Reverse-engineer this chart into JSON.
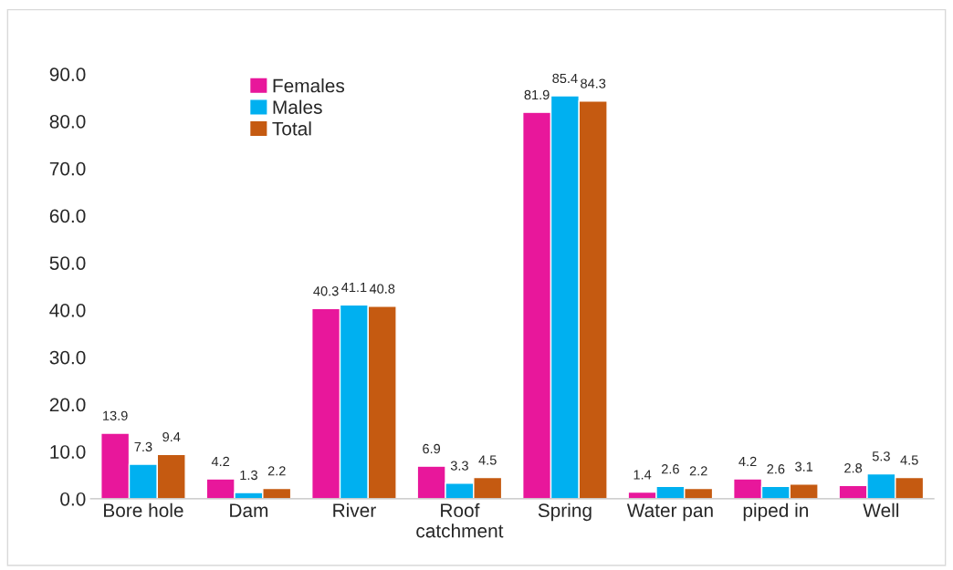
{
  "chart_data": {
    "type": "bar",
    "categories": [
      "Bore hole",
      "Dam",
      "River",
      "Roof\ncatchment",
      "Spring",
      "Water pan",
      "piped in",
      "Well"
    ],
    "series": [
      {
        "name": "Females",
        "color": "#e8179b",
        "values": [
          13.9,
          4.2,
          40.3,
          6.9,
          81.9,
          1.4,
          4.2,
          2.8
        ]
      },
      {
        "name": "Males",
        "color": "#00b0f0",
        "values": [
          7.3,
          1.3,
          41.1,
          3.3,
          85.4,
          2.6,
          2.6,
          5.3
        ]
      },
      {
        "name": "Total",
        "color": "#c55a11",
        "values": [
          9.4,
          2.2,
          40.8,
          4.5,
          84.3,
          2.2,
          3.1,
          4.5
        ]
      }
    ],
    "ylim": [
      0,
      90
    ],
    "yticks": [
      {
        "value": 0,
        "label": "0.0"
      },
      {
        "value": 10,
        "label": "10.0"
      },
      {
        "value": 20,
        "label": "20.0"
      },
      {
        "value": 30,
        "label": "30.0"
      },
      {
        "value": 40,
        "label": "40.0"
      },
      {
        "value": 50,
        "label": "50.0"
      },
      {
        "value": 60,
        "label": "60.0"
      },
      {
        "value": 70,
        "label": "70.0"
      },
      {
        "value": 80,
        "label": "80.0"
      },
      {
        "value": 90,
        "label": "90.0"
      }
    ],
    "data_labels": true,
    "grid": false,
    "legend": "top left"
  }
}
